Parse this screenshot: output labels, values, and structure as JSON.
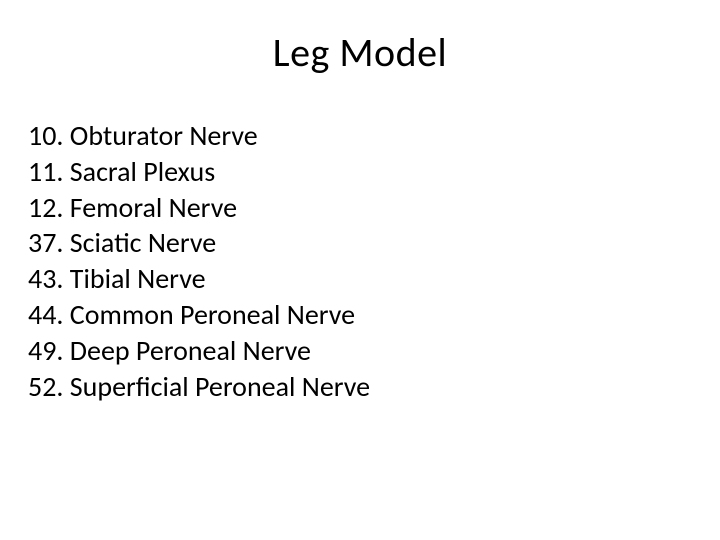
{
  "title": "Leg Model",
  "title_fontsize": 40,
  "list_fontsize": 28,
  "text_color": "#000000",
  "background_color": "#ffffff",
  "items": [
    {
      "number": "10.",
      "label": "Obturator Nerve"
    },
    {
      "number": "11.",
      "label": "Sacral Plexus"
    },
    {
      "number": "12.",
      "label": "Femoral Nerve"
    },
    {
      "number": "37.",
      "label": "Sciatic Nerve"
    },
    {
      "number": "43.",
      "label": "Tibial Nerve"
    },
    {
      "number": "44.",
      "label": "Common Peroneal Nerve"
    },
    {
      "number": "49.",
      "label": "Deep Peroneal Nerve"
    },
    {
      "number": "52.",
      "label": "Superficial Peroneal Nerve"
    }
  ]
}
